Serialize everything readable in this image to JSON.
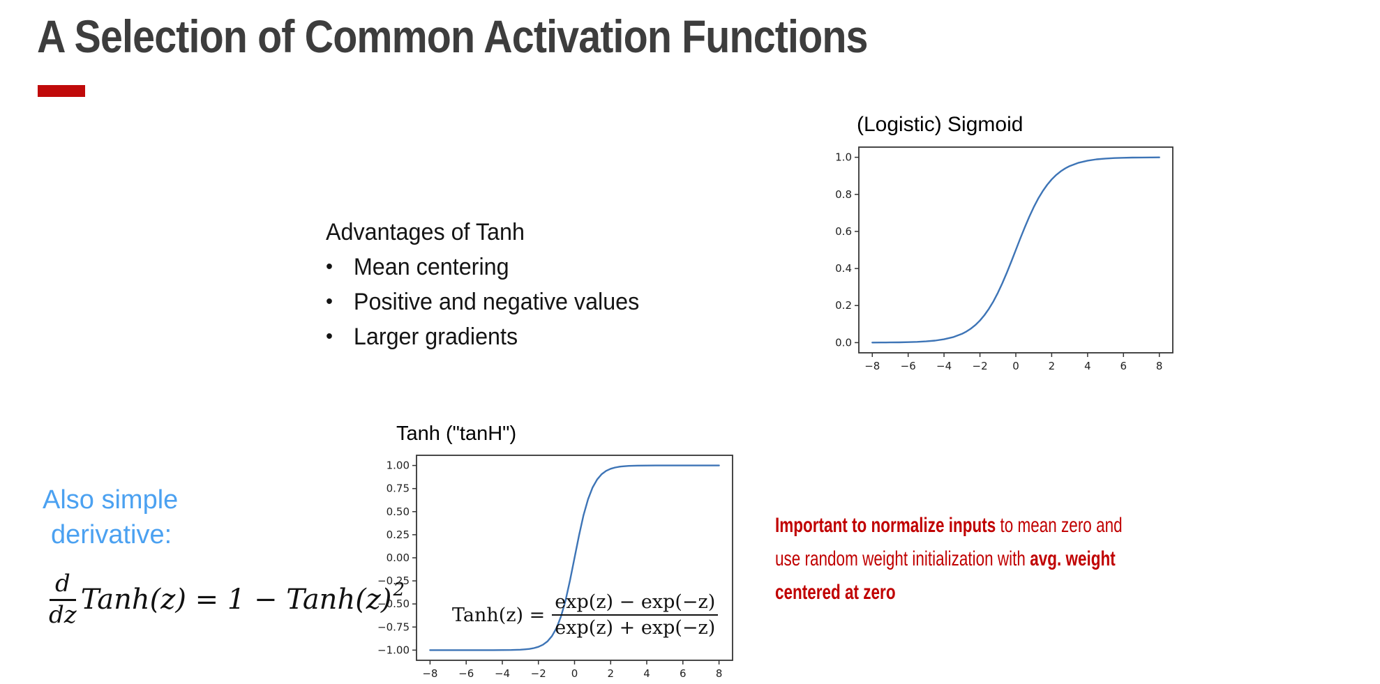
{
  "slide": {
    "title": "A Selection of Common Activation Functions",
    "accent_color": "#c00a0a",
    "background": "#ffffff"
  },
  "advantages": {
    "heading": "Advantages of Tanh",
    "bullet_glyph": "•",
    "bullets": [
      "Mean centering",
      "Positive and negative values",
      "Larger gradients"
    ]
  },
  "derivative_note": {
    "line1": "Also simple",
    "line2": "derivative:",
    "color": "#4ba1f1"
  },
  "derivative_formula": {
    "num": "d",
    "den": "dz",
    "rhs": "Tanh(z) = 1 − Tanh(z)",
    "exp": "2"
  },
  "warning": {
    "color": "#c00000",
    "lines": [
      {
        "segments": [
          {
            "t": "Important to normalize inputs",
            "b": true
          },
          {
            "t": " to mean zero and",
            "b": false
          }
        ]
      },
      {
        "segments": [
          {
            "t": "use random weight initialization with ",
            "b": false
          },
          {
            "t": "avg. weight",
            "b": true
          }
        ]
      },
      {
        "segments": [
          {
            "t": "centered at zero",
            "b": true
          }
        ]
      }
    ]
  },
  "chart_data": [
    {
      "type": "line",
      "title": "(Logistic) Sigmoid",
      "function": "sigmoid(x) = 1/(1+exp(−x))",
      "x": [
        -8,
        -7.5,
        -7,
        -6.5,
        -6,
        -5.5,
        -5,
        -4.5,
        -4,
        -3.5,
        -3,
        -2.75,
        -2.5,
        -2.25,
        -2,
        -1.75,
        -1.5,
        -1.25,
        -1,
        -0.75,
        -0.5,
        -0.25,
        0,
        0.25,
        0.5,
        0.75,
        1,
        1.25,
        1.5,
        1.75,
        2,
        2.25,
        2.5,
        2.75,
        3,
        3.5,
        4,
        4.5,
        5,
        5.5,
        6,
        6.5,
        7,
        7.5,
        8
      ],
      "y": [
        0.0003,
        0.0006,
        0.0009,
        0.0015,
        0.0025,
        0.0041,
        0.0067,
        0.011,
        0.018,
        0.0293,
        0.0474,
        0.0601,
        0.0759,
        0.0953,
        0.1192,
        0.148,
        0.1824,
        0.2227,
        0.2689,
        0.3208,
        0.3775,
        0.4378,
        0.5,
        0.5622,
        0.6225,
        0.6792,
        0.7311,
        0.7773,
        0.8176,
        0.852,
        0.8808,
        0.9047,
        0.9241,
        0.9399,
        0.9526,
        0.9707,
        0.982,
        0.989,
        0.9933,
        0.9959,
        0.9975,
        0.9985,
        0.9991,
        0.9994,
        0.9997
      ],
      "xlim": [
        -8.75,
        8.75
      ],
      "ylim": [
        -0.055,
        1.055
      ],
      "xticks": [
        -8,
        -6,
        -4,
        -2,
        0,
        2,
        4,
        6,
        8
      ],
      "xtick_labels": [
        "−8",
        "−6",
        "−4",
        "−2",
        "0",
        "2",
        "4",
        "6",
        "8"
      ],
      "yticks": [
        0,
        0.2,
        0.4,
        0.6,
        0.8,
        1
      ],
      "ytick_labels": [
        "0.0",
        "0.2",
        "0.4",
        "0.6",
        "0.8",
        "1.0"
      ],
      "line_color": "#3d74b6",
      "frame_color": "#333333",
      "grid": false,
      "legend": null
    },
    {
      "type": "line",
      "title": "Tanh (\"tanH\")",
      "function": "tanh(z) = (exp(z) − exp(−z)) / (exp(z) + exp(−z))",
      "x": [
        -8,
        -7.5,
        -7,
        -6.5,
        -6,
        -5.5,
        -5,
        -4.5,
        -4,
        -3.5,
        -3,
        -2.75,
        -2.5,
        -2.25,
        -2,
        -1.75,
        -1.5,
        -1.25,
        -1,
        -0.75,
        -0.5,
        -0.25,
        0,
        0.25,
        0.5,
        0.75,
        1,
        1.25,
        1.5,
        1.75,
        2,
        2.25,
        2.5,
        2.75,
        3,
        3.5,
        4,
        4.5,
        5,
        5.5,
        6,
        6.5,
        7,
        7.5,
        8
      ],
      "y": [
        -1,
        -1,
        -1,
        -1,
        -1,
        -0.9999,
        -0.9999,
        -0.9998,
        -0.9993,
        -0.9982,
        -0.9951,
        -0.9917,
        -0.9866,
        -0.978,
        -0.964,
        -0.9414,
        -0.9051,
        -0.8483,
        -0.7616,
        -0.6351,
        -0.4621,
        -0.2449,
        0,
        0.2449,
        0.4621,
        0.6351,
        0.7616,
        0.8483,
        0.9051,
        0.9414,
        0.964,
        0.978,
        0.9866,
        0.9917,
        0.9951,
        0.9982,
        0.9993,
        0.9998,
        0.9999,
        0.9999,
        1,
        1,
        1,
        1,
        1
      ],
      "xlim": [
        -8.75,
        8.75
      ],
      "ylim": [
        -1.11,
        1.11
      ],
      "xticks": [
        -8,
        -6,
        -4,
        -2,
        0,
        2,
        4,
        6,
        8
      ],
      "xtick_labels": [
        "−8",
        "−6",
        "−4",
        "−2",
        "0",
        "2",
        "4",
        "6",
        "8"
      ],
      "yticks": [
        -1,
        -0.75,
        -0.5,
        -0.25,
        0,
        0.25,
        0.5,
        0.75,
        1
      ],
      "ytick_labels": [
        "−1.00",
        "−0.75",
        "−0.50",
        "−0.25",
        "0.00",
        "0.25",
        "0.50",
        "0.75",
        "1.00"
      ],
      "line_color": "#3d74b6",
      "frame_color": "#333333",
      "grid": false,
      "legend": null,
      "annotation": {
        "lhs": "Tanh(z) =",
        "num": "exp(z) − exp(−z)",
        "den": "exp(z) + exp(−z)"
      }
    }
  ]
}
